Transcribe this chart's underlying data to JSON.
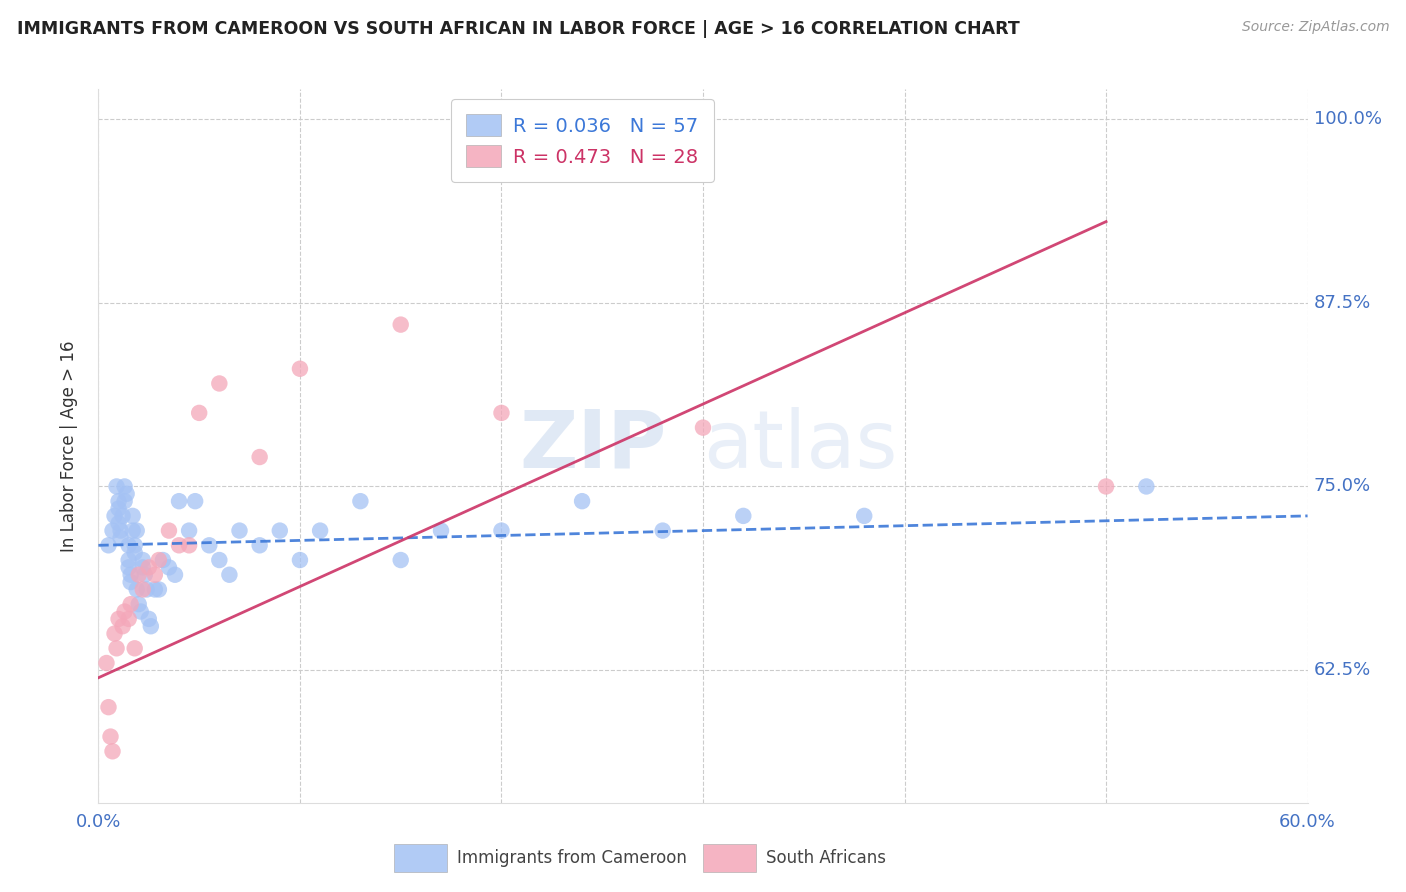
{
  "title": "IMMIGRANTS FROM CAMEROON VS SOUTH AFRICAN IN LABOR FORCE | AGE > 16 CORRELATION CHART",
  "source": "Source: ZipAtlas.com",
  "ylabel": "In Labor Force | Age > 16",
  "xmin": 0.0,
  "xmax": 0.6,
  "ymin": 0.535,
  "ymax": 1.02,
  "yticks": [
    0.625,
    0.75,
    0.875,
    1.0
  ],
  "ytick_labels": [
    "62.5%",
    "75.0%",
    "87.5%",
    "100.0%"
  ],
  "xticks": [
    0.0,
    0.1,
    0.2,
    0.3,
    0.4,
    0.5,
    0.6
  ],
  "blue_R": 0.036,
  "blue_N": 57,
  "pink_R": 0.473,
  "pink_N": 28,
  "blue_label": "Immigrants from Cameroon",
  "pink_label": "South Africans",
  "blue_color": "#a4c2f4",
  "pink_color": "#f4a7b9",
  "blue_line_color": "#3c78d8",
  "pink_line_color": "#cc3366",
  "watermark_ZIP": "ZIP",
  "watermark_atlas": "atlas",
  "blue_x": [
    0.005,
    0.007,
    0.008,
    0.009,
    0.01,
    0.01,
    0.01,
    0.011,
    0.011,
    0.012,
    0.013,
    0.013,
    0.014,
    0.015,
    0.015,
    0.015,
    0.016,
    0.016,
    0.017,
    0.017,
    0.018,
    0.018,
    0.019,
    0.019,
    0.02,
    0.021,
    0.022,
    0.022,
    0.023,
    0.024,
    0.025,
    0.026,
    0.028,
    0.03,
    0.032,
    0.035,
    0.038,
    0.04,
    0.045,
    0.048,
    0.055,
    0.06,
    0.065,
    0.07,
    0.08,
    0.09,
    0.1,
    0.11,
    0.13,
    0.15,
    0.17,
    0.2,
    0.24,
    0.28,
    0.32,
    0.38,
    0.52
  ],
  "blue_y": [
    0.71,
    0.72,
    0.73,
    0.75,
    0.74,
    0.735,
    0.725,
    0.72,
    0.715,
    0.73,
    0.74,
    0.75,
    0.745,
    0.71,
    0.7,
    0.695,
    0.69,
    0.685,
    0.73,
    0.72,
    0.71,
    0.705,
    0.72,
    0.68,
    0.67,
    0.665,
    0.7,
    0.695,
    0.69,
    0.68,
    0.66,
    0.655,
    0.68,
    0.68,
    0.7,
    0.695,
    0.69,
    0.74,
    0.72,
    0.74,
    0.71,
    0.7,
    0.69,
    0.72,
    0.71,
    0.72,
    0.7,
    0.72,
    0.74,
    0.7,
    0.72,
    0.72,
    0.74,
    0.72,
    0.73,
    0.73,
    0.75
  ],
  "pink_x": [
    0.004,
    0.005,
    0.006,
    0.007,
    0.008,
    0.009,
    0.01,
    0.012,
    0.013,
    0.015,
    0.016,
    0.018,
    0.02,
    0.022,
    0.025,
    0.028,
    0.03,
    0.035,
    0.04,
    0.045,
    0.05,
    0.06,
    0.08,
    0.1,
    0.15,
    0.2,
    0.3,
    0.5
  ],
  "pink_y": [
    0.63,
    0.6,
    0.58,
    0.57,
    0.65,
    0.64,
    0.66,
    0.655,
    0.665,
    0.66,
    0.67,
    0.64,
    0.69,
    0.68,
    0.695,
    0.69,
    0.7,
    0.72,
    0.71,
    0.71,
    0.8,
    0.82,
    0.77,
    0.83,
    0.86,
    0.8,
    0.79,
    0.75
  ],
  "blue_line_x0": 0.0,
  "blue_line_x1": 0.6,
  "blue_line_y0": 0.71,
  "blue_line_y1": 0.73,
  "pink_line_x0": 0.0,
  "pink_line_x1": 0.5,
  "pink_line_y0": 0.62,
  "pink_line_y1": 0.93
}
